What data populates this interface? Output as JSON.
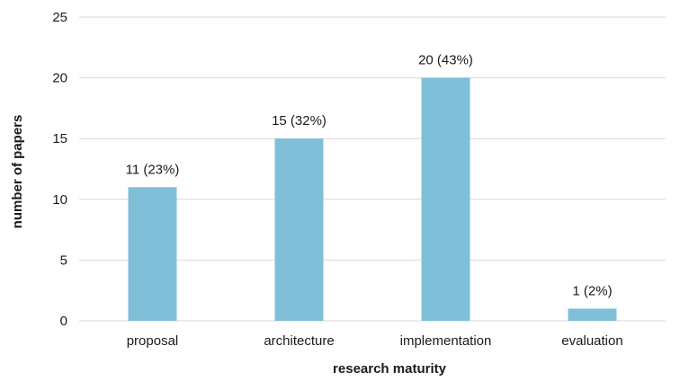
{
  "chart_data": {
    "type": "bar",
    "title": "",
    "xlabel": "research maturity",
    "ylabel": "number of papers",
    "categories": [
      "proposal",
      "architecture",
      "implementation",
      "evaluation"
    ],
    "values": [
      11,
      15,
      20,
      1
    ],
    "data_labels": [
      "11 (23%)",
      "15 (32%)",
      "20 (43%)",
      "1 (2%)"
    ],
    "ylim": [
      0,
      25
    ],
    "yticks": [
      0,
      5,
      10,
      15,
      20,
      25
    ],
    "grid": "horizontal",
    "legend": "none",
    "bar_color": "#7fbfd8",
    "grid_color": "#d9d9d9"
  }
}
